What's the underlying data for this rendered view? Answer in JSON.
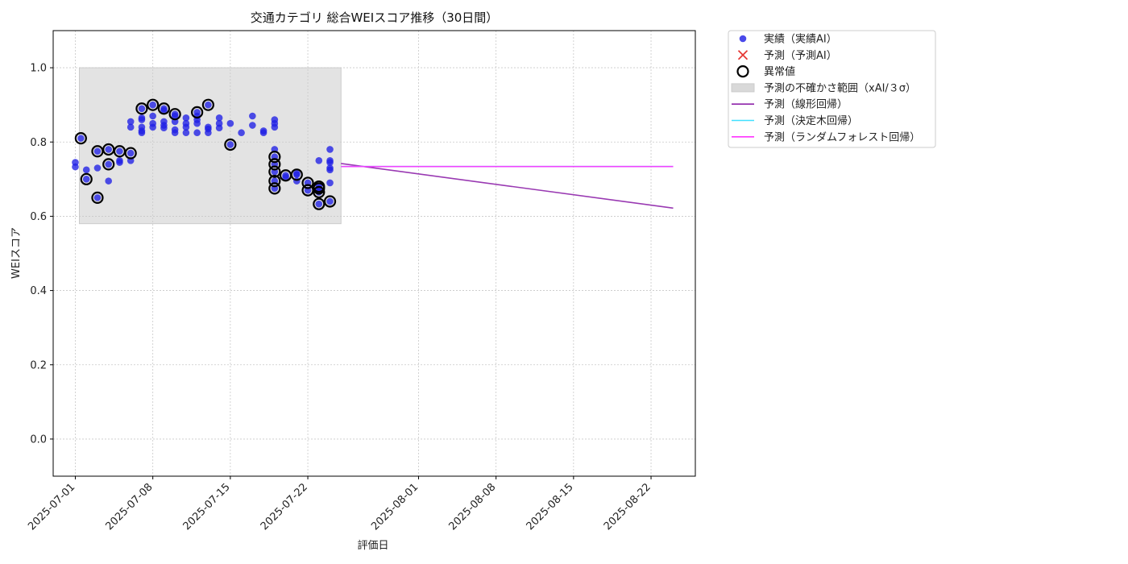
{
  "chart_data": {
    "type": "scatter",
    "title": "交通カテゴリ 総合WEIスコア推移（30日間）",
    "xlabel": "評価日",
    "ylabel": "WEIスコア",
    "xlim": [
      "2025-06-29",
      "2025-08-26"
    ],
    "ylim": [
      -0.1,
      1.1
    ],
    "x_ticks": [
      "2025-07-01",
      "2025-07-08",
      "2025-07-15",
      "2025-07-22",
      "2025-08-01",
      "2025-08-08",
      "2025-08-15",
      "2025-08-22"
    ],
    "y_ticks": [
      0.0,
      0.2,
      0.4,
      0.6,
      0.8,
      1.0
    ],
    "y_tick_labels": [
      "0.0",
      "0.2",
      "0.4",
      "0.6",
      "0.8",
      "1.0"
    ],
    "grid": true,
    "legend_position": "outside-top-right",
    "legend": [
      {
        "label": "実績（実績AI）",
        "kind": "dot",
        "color": "#2a2ae6"
      },
      {
        "label": "予測（予測AI）",
        "kind": "cross",
        "color": "#e53935"
      },
      {
        "label": "異常値",
        "kind": "ring",
        "color": "#000000"
      },
      {
        "label": "予測の不確かさ範囲（xAI/３σ）",
        "kind": "band",
        "color": "#d9d9d9"
      },
      {
        "label": "予測（線形回帰）",
        "kind": "line",
        "color": "#8e24aa"
      },
      {
        "label": "予測（決定木回帰）",
        "kind": "line",
        "color": "#40e0ff"
      },
      {
        "label": "予測（ランダムフォレスト回帰）",
        "kind": "line",
        "color": "#ff33ff"
      }
    ],
    "uncertainty_band": {
      "x": [
        "2025-07-01",
        "2025-07-25"
      ],
      "y": [
        0.58,
        1.0
      ]
    },
    "actual": [
      [
        "2025-07-01",
        0.745
      ],
      [
        "2025-07-01",
        0.733
      ],
      [
        "2025-07-01.5",
        0.81
      ],
      [
        "2025-07-02",
        0.7
      ],
      [
        "2025-07-02",
        0.725
      ],
      [
        "2025-07-03",
        0.775
      ],
      [
        "2025-07-03",
        0.73
      ],
      [
        "2025-07-03",
        0.65
      ],
      [
        "2025-07-04",
        0.78
      ],
      [
        "2025-07-04",
        0.74
      ],
      [
        "2025-07-04",
        0.695
      ],
      [
        "2025-07-05",
        0.75
      ],
      [
        "2025-07-05",
        0.745
      ],
      [
        "2025-07-05",
        0.775
      ],
      [
        "2025-07-06",
        0.77
      ],
      [
        "2025-07-06",
        0.75
      ],
      [
        "2025-07-06",
        0.855
      ],
      [
        "2025-07-06",
        0.84
      ],
      [
        "2025-07-07",
        0.86
      ],
      [
        "2025-07-07",
        0.83
      ],
      [
        "2025-07-07",
        0.825
      ],
      [
        "2025-07-07",
        0.89
      ],
      [
        "2025-07-07",
        0.865
      ],
      [
        "2025-07-07",
        0.84
      ],
      [
        "2025-07-08",
        0.87
      ],
      [
        "2025-07-08",
        0.84
      ],
      [
        "2025-07-08",
        0.85
      ],
      [
        "2025-07-08",
        0.9
      ],
      [
        "2025-07-09",
        0.855
      ],
      [
        "2025-07-09",
        0.845
      ],
      [
        "2025-07-09",
        0.838
      ],
      [
        "2025-07-09",
        0.89
      ],
      [
        "2025-07-09",
        0.885
      ],
      [
        "2025-07-10",
        0.825
      ],
      [
        "2025-07-10",
        0.833
      ],
      [
        "2025-07-10",
        0.875
      ],
      [
        "2025-07-10",
        0.855
      ],
      [
        "2025-07-10",
        0.87
      ],
      [
        "2025-07-11",
        0.865
      ],
      [
        "2025-07-11",
        0.84
      ],
      [
        "2025-07-11",
        0.825
      ],
      [
        "2025-07-11",
        0.85
      ],
      [
        "2025-07-12",
        0.88
      ],
      [
        "2025-07-12",
        0.86
      ],
      [
        "2025-07-12",
        0.87
      ],
      [
        "2025-07-12",
        0.85
      ],
      [
        "2025-07-12",
        0.825
      ],
      [
        "2025-07-13",
        0.835
      ],
      [
        "2025-07-13",
        0.9
      ],
      [
        "2025-07-13",
        0.84
      ],
      [
        "2025-07-13",
        0.825
      ],
      [
        "2025-07-14",
        0.85
      ],
      [
        "2025-07-14",
        0.865
      ],
      [
        "2025-07-14",
        0.838
      ],
      [
        "2025-07-15",
        0.793
      ],
      [
        "2025-07-15",
        0.85
      ],
      [
        "2025-07-16",
        0.825
      ],
      [
        "2025-07-17",
        0.87
      ],
      [
        "2025-07-17",
        0.845
      ],
      [
        "2025-07-18",
        0.83
      ],
      [
        "2025-07-18",
        0.825
      ],
      [
        "2025-07-19",
        0.86
      ],
      [
        "2025-07-19",
        0.85
      ],
      [
        "2025-07-19",
        0.84
      ],
      [
        "2025-07-19",
        0.78
      ],
      [
        "2025-07-19",
        0.76
      ],
      [
        "2025-07-19",
        0.74
      ],
      [
        "2025-07-19",
        0.72
      ],
      [
        "2025-07-19",
        0.695
      ],
      [
        "2025-07-19",
        0.675
      ],
      [
        "2025-07-20",
        0.71
      ],
      [
        "2025-07-20",
        0.705
      ],
      [
        "2025-07-21",
        0.715
      ],
      [
        "2025-07-21",
        0.712
      ],
      [
        "2025-07-21",
        0.695
      ],
      [
        "2025-07-22",
        0.69
      ],
      [
        "2025-07-22",
        0.67
      ],
      [
        "2025-07-23",
        0.68
      ],
      [
        "2025-07-23",
        0.675
      ],
      [
        "2025-07-23",
        0.665
      ],
      [
        "2025-07-23",
        0.633
      ],
      [
        "2025-07-23",
        0.75
      ],
      [
        "2025-07-24",
        0.69
      ],
      [
        "2025-07-24",
        0.64
      ],
      [
        "2025-07-24",
        0.78
      ],
      [
        "2025-07-24",
        0.75
      ],
      [
        "2025-07-24",
        0.73
      ],
      [
        "2025-07-24",
        0.725
      ],
      [
        "2025-07-24",
        0.745
      ]
    ],
    "anomalies": [
      [
        "2025-07-01.5",
        0.81
      ],
      [
        "2025-07-02",
        0.7
      ],
      [
        "2025-07-03",
        0.775
      ],
      [
        "2025-07-03",
        0.65
      ],
      [
        "2025-07-04",
        0.78
      ],
      [
        "2025-07-04",
        0.74
      ],
      [
        "2025-07-05",
        0.775
      ],
      [
        "2025-07-06",
        0.77
      ],
      [
        "2025-07-07",
        0.89
      ],
      [
        "2025-07-08",
        0.9
      ],
      [
        "2025-07-09",
        0.89
      ],
      [
        "2025-07-10",
        0.875
      ],
      [
        "2025-07-12",
        0.88
      ],
      [
        "2025-07-13",
        0.9
      ],
      [
        "2025-07-15",
        0.793
      ],
      [
        "2025-07-19",
        0.76
      ],
      [
        "2025-07-19",
        0.74
      ],
      [
        "2025-07-19",
        0.72
      ],
      [
        "2025-07-19",
        0.695
      ],
      [
        "2025-07-19",
        0.675
      ],
      [
        "2025-07-20",
        0.71
      ],
      [
        "2025-07-21",
        0.712
      ],
      [
        "2025-07-22",
        0.69
      ],
      [
        "2025-07-22",
        0.67
      ],
      [
        "2025-07-23",
        0.68
      ],
      [
        "2025-07-23",
        0.675
      ],
      [
        "2025-07-23",
        0.665
      ],
      [
        "2025-07-23",
        0.633
      ],
      [
        "2025-07-24",
        0.64
      ]
    ],
    "forecast_lines": [
      {
        "name": "予測（線形回帰）",
        "color": "#8e24aa",
        "x": [
          "2025-07-25",
          "2025-08-24"
        ],
        "y": [
          0.742,
          0.622
        ]
      },
      {
        "name": "予測（決定木回帰）",
        "color": "#40e0ff",
        "x": [
          "2025-07-25",
          "2025-08-24"
        ],
        "y": [
          0.734,
          0.734
        ]
      },
      {
        "name": "予測（ランダムフォレスト回帰）",
        "color": "#ff33ff",
        "x": [
          "2025-07-25",
          "2025-08-24"
        ],
        "y": [
          0.734,
          0.734
        ]
      }
    ]
  }
}
